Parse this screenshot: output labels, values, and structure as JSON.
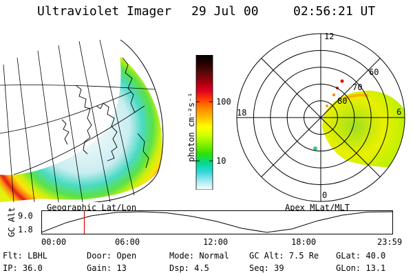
{
  "header": {
    "instrument": "Ultraviolet Imager",
    "date": "29 Jul 00",
    "time": "02:56:21 UT"
  },
  "left_panel": {
    "label": "Geographic Lat/Lon"
  },
  "right_panel": {
    "label": "Apex MLat/MLT",
    "hour_labels": {
      "top": "12",
      "left": "18",
      "bottom": "0",
      "right": "6"
    },
    "lat_labels": [
      "60",
      "70",
      "80"
    ]
  },
  "colorbar": {
    "unit_label": "photon cm⁻²s⁻¹",
    "ticks": [
      "100",
      "10"
    ],
    "colors": [
      "#000000",
      "#2a0000",
      "#5a0a0a",
      "#a00010",
      "#e00020",
      "#ff4000",
      "#ff8c00",
      "#ffc000",
      "#ffff00",
      "#ccff00",
      "#80f000",
      "#30e000",
      "#00d890",
      "#30d8d8",
      "#a0e8f0",
      "#ffffff"
    ]
  },
  "altitude_plot": {
    "ylabel": "GC Alt",
    "y_ticks": [
      "9.0",
      "1.8"
    ],
    "x_ticks": [
      "00:00",
      "06:00",
      "12:00",
      "18:00",
      "23:59"
    ],
    "orbit_alt_samples": [
      1.8,
      5.2,
      7.6,
      8.8,
      9.0,
      8.6,
      7.4,
      5.6,
      3.2,
      1.8,
      3.0,
      5.8,
      7.8,
      8.9,
      9.0
    ],
    "current_marker_hour": 2.94,
    "marker_color": "#e00000"
  },
  "info": {
    "flt": "Flt: LBHL",
    "ip": "IP: 36.0",
    "door": "Door: Open",
    "gain": "Gain: 13",
    "mode": "Mode: Normal",
    "dsp": "Dsp:    4.5",
    "gc_alt": "GC Alt: 7.5 Re",
    "seq": "Seq: 39",
    "glat": "GLat: 40.0",
    "glon": "GLon: 13.1"
  }
}
